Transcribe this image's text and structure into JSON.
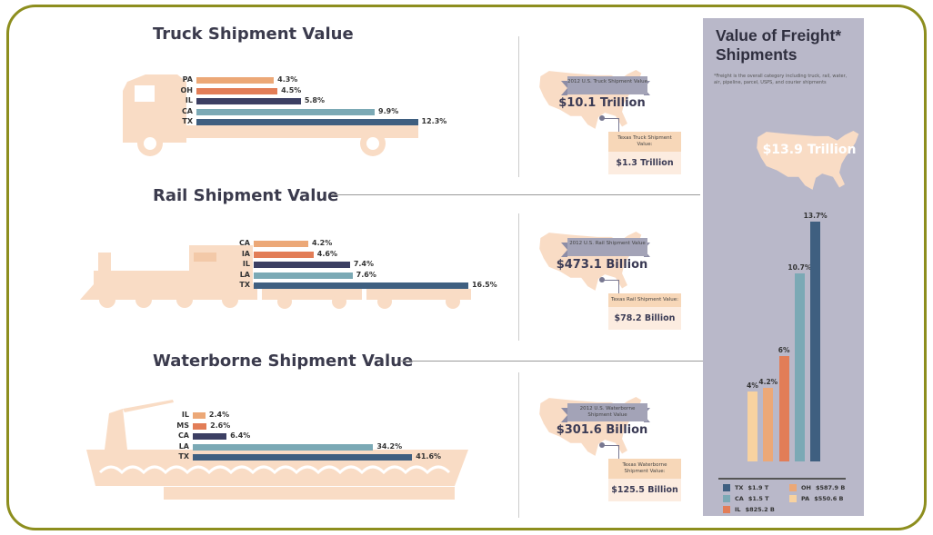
{
  "colors": {
    "frame": "#8d8e1e",
    "vehicle": "#f9dcc5",
    "panel": "#b9b8c9",
    "TX": "#3f5f80",
    "CA": "#7ba9b5",
    "navy": "#3c3f63",
    "orange": "#e27d57",
    "tan": "#eca877",
    "pale": "#f8d2a0"
  },
  "chart_data": [
    {
      "type": "bar",
      "orientation": "horizontal",
      "title": "Truck Shipment Value",
      "categories": [
        "PA",
        "OH",
        "IL",
        "CA",
        "TX"
      ],
      "values": [
        4.3,
        4.5,
        5.8,
        9.9,
        12.3
      ],
      "labels": [
        "4.3%",
        "4.5%",
        "5.8%",
        "9.9%",
        "12.3%"
      ],
      "colors": [
        "#eca877",
        "#e27d57",
        "#3c3f63",
        "#7ba9b5",
        "#3f5f80"
      ]
    },
    {
      "type": "bar",
      "orientation": "horizontal",
      "title": "Rail Shipment Value",
      "categories": [
        "CA",
        "IA",
        "IL",
        "LA",
        "TX"
      ],
      "values": [
        4.2,
        4.6,
        7.4,
        7.6,
        16.5
      ],
      "labels": [
        "4.2%",
        "4.6%",
        "7.4%",
        "7.6%",
        "16.5%"
      ],
      "colors": [
        "#eca877",
        "#e27d57",
        "#3c3f63",
        "#7ba9b5",
        "#3f5f80"
      ]
    },
    {
      "type": "bar",
      "orientation": "horizontal",
      "title": "Waterborne Shipment Value",
      "categories": [
        "IL",
        "MS",
        "CA",
        "LA",
        "TX"
      ],
      "values": [
        2.4,
        2.6,
        6.4,
        34.2,
        41.6
      ],
      "labels": [
        "2.4%",
        "2.6%",
        "6.4%",
        "34.2%",
        "41.6%"
      ],
      "colors": [
        "#eca877",
        "#e27d57",
        "#3c3f63",
        "#7ba9b5",
        "#3f5f80"
      ]
    },
    {
      "type": "bar",
      "orientation": "vertical",
      "title": "Value of Freight* Shipments",
      "categories": [
        "PA",
        "OH",
        "IL",
        "CA",
        "TX"
      ],
      "values": [
        4,
        4.2,
        6,
        10.7,
        13.7
      ],
      "labels": [
        "4%",
        "4.2%",
        "6%",
        "10.7%",
        "13.7%"
      ],
      "colors": [
        "#f8d2a0",
        "#eca877",
        "#e27d57",
        "#7ba9b5",
        "#3f5f80"
      ],
      "legend": [
        {
          "state": "TX",
          "value": "$1.9 T",
          "color": "#3f5f80"
        },
        {
          "state": "CA",
          "value": "$1.5 T",
          "color": "#7ba9b5"
        },
        {
          "state": "IL",
          "value": "$825.2 B",
          "color": "#e27d57"
        },
        {
          "state": "OH",
          "value": "$587.9 B",
          "color": "#eca877"
        },
        {
          "state": "PA",
          "value": "$550.6 B",
          "color": "#f8d2a0"
        }
      ]
    }
  ],
  "summaries": [
    {
      "ribbon": "2012 U.S. Truck Shipment Value",
      "us_value": "$10.1 Trillion",
      "texas_label": "Texas Truck Shipment Value:",
      "texas_value": "$1.3 Trillion"
    },
    {
      "ribbon": "2012 U.S. Rail Shipment Value",
      "us_value": "$473.1 Billion",
      "texas_label": "Texas Rail Shipment Value:",
      "texas_value": "$78.2 Billion"
    },
    {
      "ribbon": "2012 U.S. Waterborne Shipment Value",
      "us_value": "$301.6 Billion",
      "texas_label": "Texas Waterborne Shipment Value:",
      "texas_value": "$125.5 Billion"
    }
  ],
  "panel": {
    "title": "Value of Freight* Shipments",
    "footnote": "*Freight is the overall category including truck, rail, water, air, pipeline, parcel, USPS, and courier shipments",
    "total": "$13.9 Trillion"
  }
}
